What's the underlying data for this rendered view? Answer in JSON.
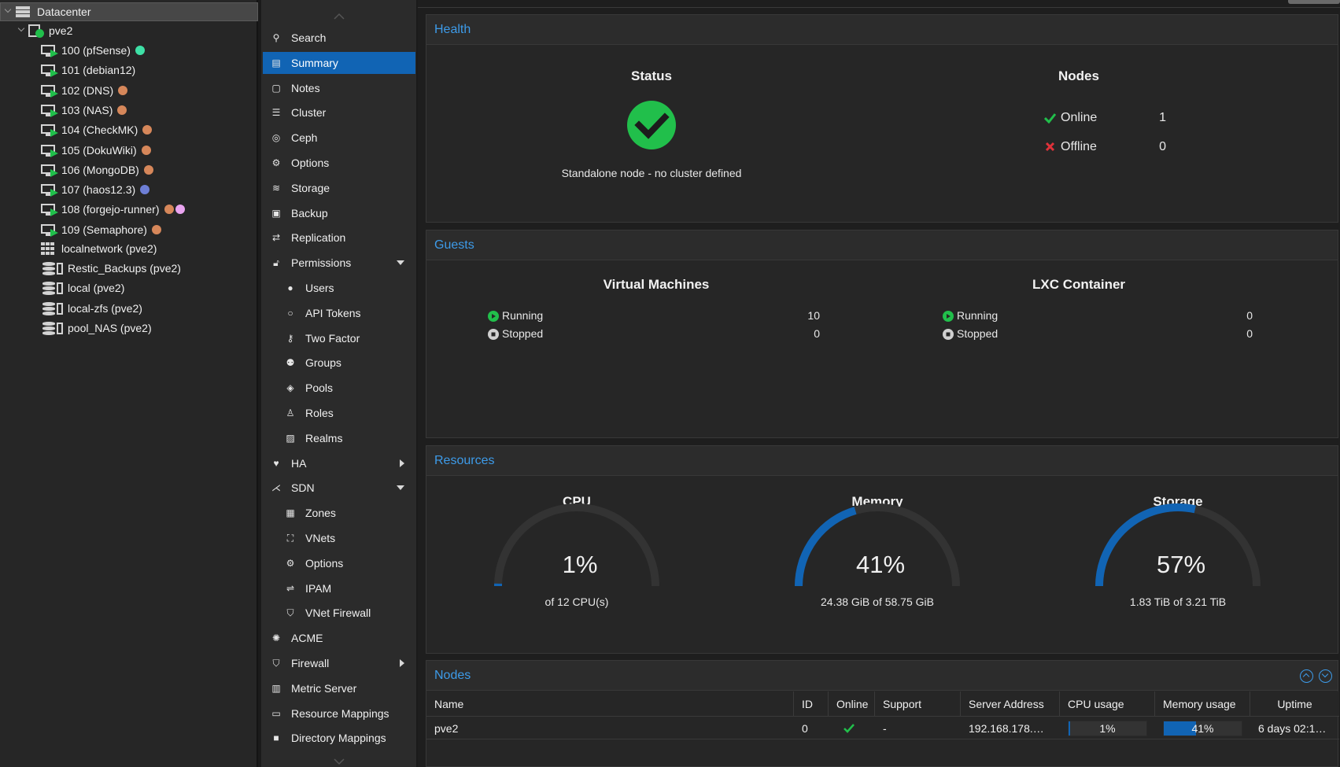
{
  "tree": {
    "datacenter": "Datacenter",
    "node": "pve2",
    "guests": [
      {
        "label": "100 (pfSense)",
        "tags": [
          "#3ee0a6"
        ]
      },
      {
        "label": "101 (debian12)",
        "tags": []
      },
      {
        "label": "102 (DNS)",
        "tags": [
          "#d6875a"
        ]
      },
      {
        "label": "103 (NAS)",
        "tags": [
          "#d6875a"
        ]
      },
      {
        "label": "104 (CheckMK)",
        "tags": [
          "#d6875a"
        ]
      },
      {
        "label": "105 (DokuWiki)",
        "tags": [
          "#d6875a"
        ]
      },
      {
        "label": "106 (MongoDB)",
        "tags": [
          "#d6875a"
        ]
      },
      {
        "label": "107 (haos12.3)",
        "tags": [
          "#6e7fd6"
        ]
      },
      {
        "label": "108 (forgejo-runner)",
        "tags": [
          "#d6875a",
          "#e9a4f0"
        ]
      },
      {
        "label": "109 (Semaphore)",
        "tags": [
          "#d6875a"
        ]
      }
    ],
    "network": "localnetwork (pve2)",
    "storages": [
      "Restic_Backups (pve2)",
      "local (pve2)",
      "local-zfs (pve2)",
      "pool_NAS (pve2)"
    ]
  },
  "menu": {
    "items": [
      {
        "label": "Search",
        "icon": "search-icon",
        "glyph": "⚲",
        "sub": false,
        "arrow": "",
        "active": false
      },
      {
        "label": "Summary",
        "icon": "book-icon",
        "glyph": "▤",
        "sub": false,
        "arrow": "",
        "active": true
      },
      {
        "label": "Notes",
        "icon": "sticky-note-icon",
        "glyph": "▢",
        "sub": false,
        "arrow": "",
        "active": false
      },
      {
        "label": "Cluster",
        "icon": "server-icon",
        "glyph": "☰",
        "sub": false,
        "arrow": "",
        "active": false
      },
      {
        "label": "Ceph",
        "icon": "ceph-icon",
        "glyph": "◎",
        "sub": false,
        "arrow": "",
        "active": false
      },
      {
        "label": "Options",
        "icon": "gear-icon",
        "glyph": "⚙",
        "sub": false,
        "arrow": "",
        "active": false
      },
      {
        "label": "Storage",
        "icon": "database-icon",
        "glyph": "≋",
        "sub": false,
        "arrow": "",
        "active": false
      },
      {
        "label": "Backup",
        "icon": "floppy-icon",
        "glyph": "▣",
        "sub": false,
        "arrow": "",
        "active": false
      },
      {
        "label": "Replication",
        "icon": "retweet-icon",
        "glyph": "⇄",
        "sub": false,
        "arrow": "",
        "active": false
      },
      {
        "label": "Permissions",
        "icon": "unlock-icon",
        "glyph": "🔓︎",
        "sub": false,
        "arrow": "down",
        "active": false
      },
      {
        "label": "Users",
        "icon": "user-icon",
        "glyph": "●",
        "sub": true,
        "arrow": "",
        "active": false
      },
      {
        "label": "API Tokens",
        "icon": "user-outline-icon",
        "glyph": "○",
        "sub": true,
        "arrow": "",
        "active": false
      },
      {
        "label": "Two Factor",
        "icon": "key-icon",
        "glyph": "⚷",
        "sub": true,
        "arrow": "",
        "active": false
      },
      {
        "label": "Groups",
        "icon": "users-icon",
        "glyph": "⚉",
        "sub": true,
        "arrow": "",
        "active": false
      },
      {
        "label": "Pools",
        "icon": "tags-icon",
        "glyph": "◈",
        "sub": true,
        "arrow": "",
        "active": false
      },
      {
        "label": "Roles",
        "icon": "male-icon",
        "glyph": "♙",
        "sub": true,
        "arrow": "",
        "active": false
      },
      {
        "label": "Realms",
        "icon": "address-book-icon",
        "glyph": "▨",
        "sub": true,
        "arrow": "",
        "active": false
      },
      {
        "label": "HA",
        "icon": "heartbeat-icon",
        "glyph": "♥",
        "sub": false,
        "arrow": "right",
        "active": false
      },
      {
        "label": "SDN",
        "icon": "sdn-icon",
        "glyph": "⋌",
        "sub": false,
        "arrow": "down",
        "active": false
      },
      {
        "label": "Zones",
        "icon": "th-icon",
        "glyph": "▦",
        "sub": true,
        "arrow": "",
        "active": false
      },
      {
        "label": "VNets",
        "icon": "network-icon",
        "glyph": "⛶",
        "sub": true,
        "arrow": "",
        "active": false
      },
      {
        "label": "Options",
        "icon": "gear-icon",
        "glyph": "⚙",
        "sub": true,
        "arrow": "",
        "active": false
      },
      {
        "label": "IPAM",
        "icon": "ipam-icon",
        "glyph": "⇌",
        "sub": true,
        "arrow": "",
        "active": false
      },
      {
        "label": "VNet Firewall",
        "icon": "shield-icon",
        "glyph": "⛉",
        "sub": true,
        "arrow": "",
        "active": false
      },
      {
        "label": "ACME",
        "icon": "certificate-icon",
        "glyph": "✺",
        "sub": false,
        "arrow": "",
        "active": false
      },
      {
        "label": "Firewall",
        "icon": "shield-icon",
        "glyph": "⛉",
        "sub": false,
        "arrow": "right",
        "active": false
      },
      {
        "label": "Metric Server",
        "icon": "bar-chart-icon",
        "glyph": "▥",
        "sub": false,
        "arrow": "",
        "active": false
      },
      {
        "label": "Resource Mappings",
        "icon": "folder-outline-icon",
        "glyph": "▭",
        "sub": false,
        "arrow": "",
        "active": false
      },
      {
        "label": "Directory Mappings",
        "icon": "folder-icon",
        "glyph": "■",
        "sub": false,
        "arrow": "",
        "active": false
      }
    ]
  },
  "health": {
    "title": "Health",
    "status_heading": "Status",
    "status_text": "Standalone node - no cluster defined",
    "nodes_heading": "Nodes",
    "online_label": "Online",
    "online_value": "1",
    "offline_label": "Offline",
    "offline_value": "0"
  },
  "guests": {
    "title": "Guests",
    "vm_heading": "Virtual Machines",
    "lxc_heading": "LXC Container",
    "running_label": "Running",
    "stopped_label": "Stopped",
    "vm_running": "10",
    "vm_stopped": "0",
    "lxc_running": "0",
    "lxc_stopped": "0"
  },
  "resources": {
    "title": "Resources",
    "gauges": [
      {
        "heading": "CPU",
        "value_text": "1%",
        "fraction": 0.01,
        "sub": "of 12 CPU(s)"
      },
      {
        "heading": "Memory",
        "value_text": "41%",
        "fraction": 0.41,
        "sub": "24.38 GiB of 58.75 GiB"
      },
      {
        "heading": "Storage",
        "value_text": "57%",
        "fraction": 0.57,
        "sub": "1.83 TiB of 3.21 TiB"
      }
    ]
  },
  "nodes": {
    "title": "Nodes",
    "columns": [
      "Name",
      "ID",
      "Online",
      "Support",
      "Server Address",
      "CPU usage",
      "Memory usage",
      "Uptime"
    ],
    "row": {
      "name": "pve2",
      "id": "0",
      "support": "-",
      "address": "192.168.178.…",
      "cpu_text": "1%",
      "cpu_fraction": 0.01,
      "mem_text": "41%",
      "mem_fraction": 0.41,
      "uptime": "6 days 02:1…"
    }
  },
  "colors": {
    "accent": "#1164b4",
    "header_text": "#3d9be9",
    "ok": "#21bf4b",
    "error": "#e0323a",
    "gauge_track": "#333333"
  }
}
